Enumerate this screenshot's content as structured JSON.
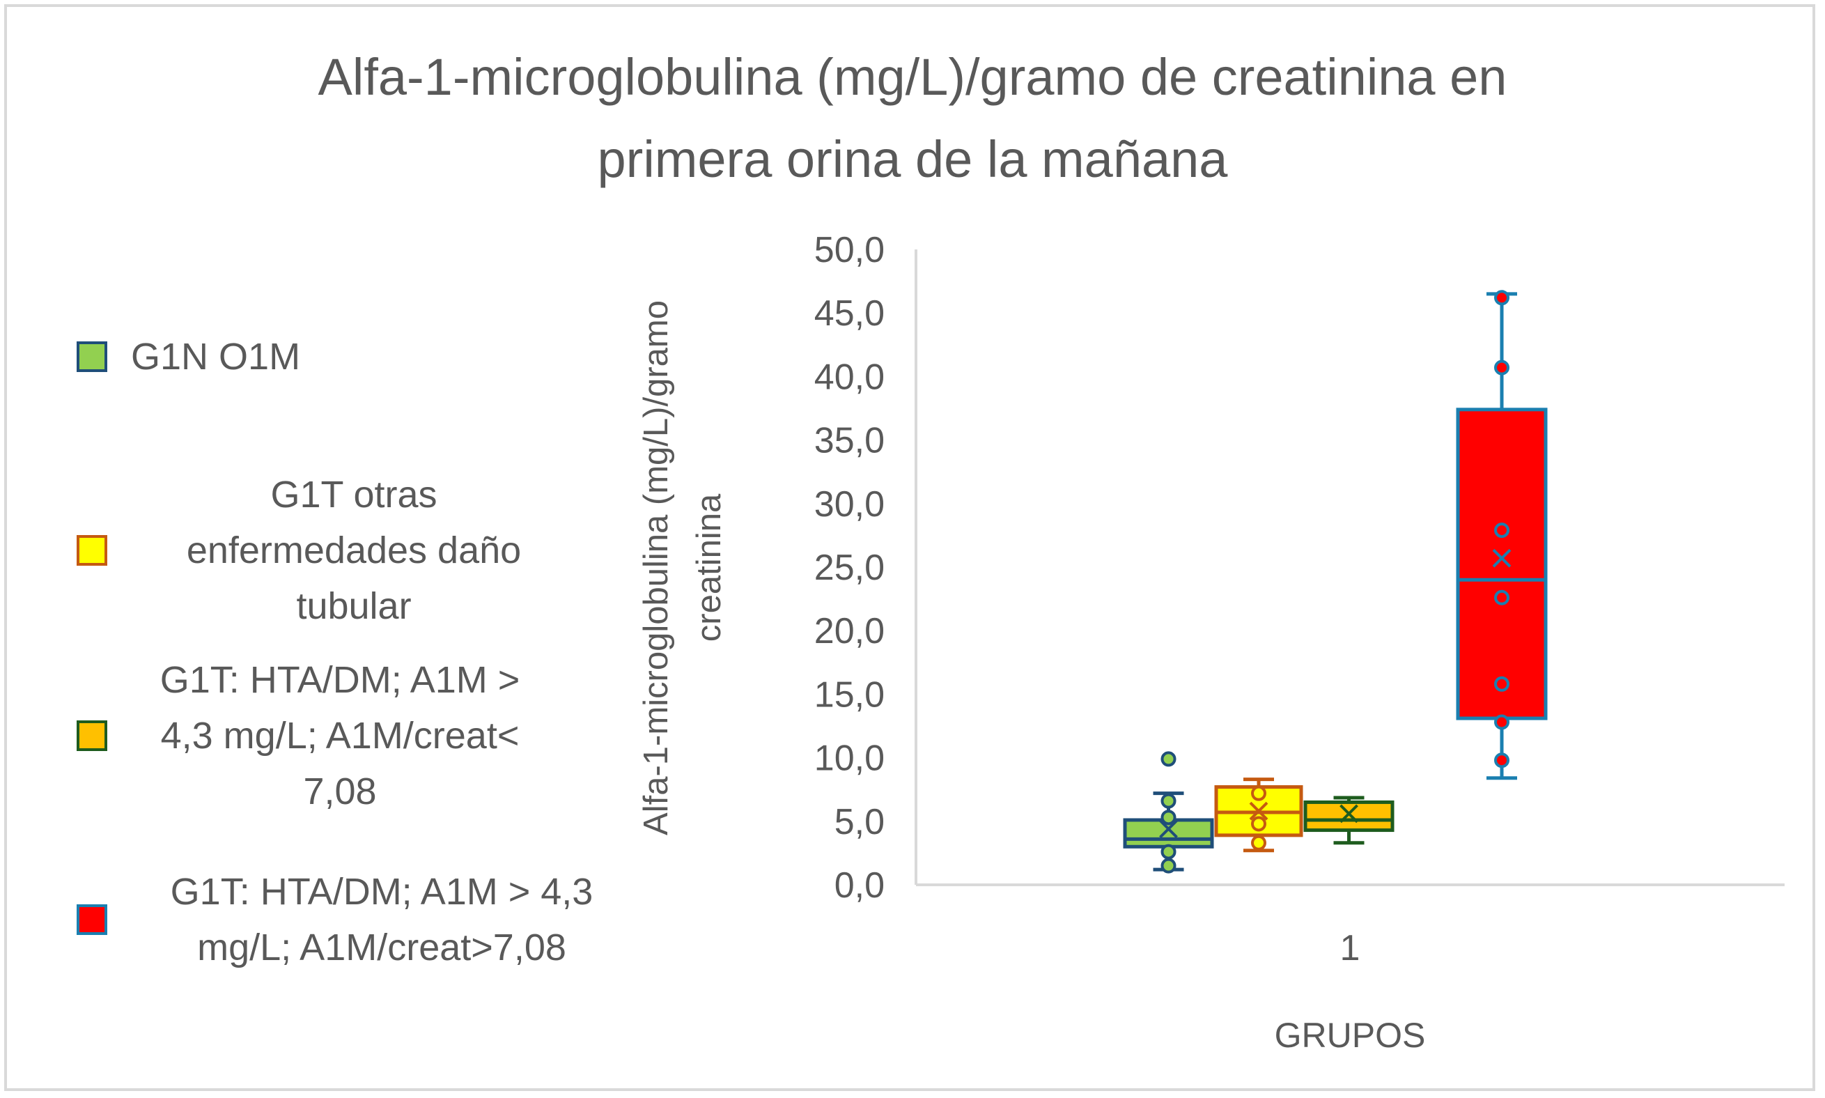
{
  "chart_data": {
    "type": "boxplot",
    "title": "Alfa-1-microglobulina (mg/L)/gramo de creatinina en primera orina de la mañana",
    "title_lines": [
      "Alfa-1-microglobulina (mg/L)/gramo de creatinina en",
      "primera orina de la mañana"
    ],
    "xlabel": "GRUPOS",
    "ylabel_lines": [
      "Alfa-1-microglobulina (mg/L)/gramo",
      "creatinina"
    ],
    "categories": [
      "1"
    ],
    "ylim": [
      0,
      50
    ],
    "yticks": [
      "0,0",
      "5,0",
      "10,0",
      "15,0",
      "20,0",
      "25,0",
      "30,0",
      "35,0",
      "40,0",
      "45,0",
      "50,0"
    ],
    "grid": false,
    "legend_position": "left",
    "series": [
      {
        "name": "G1N O1M",
        "fill": "#92d050",
        "stroke": "#1f4e79",
        "min": 1.2,
        "q1": 3.0,
        "median": 3.6,
        "q3": 5.1,
        "max": 7.2,
        "mean": 4.4,
        "points": [
          1.5,
          2.6,
          5.3,
          6.6,
          9.9
        ]
      },
      {
        "name": "G1T otras enfermedades daño tubular",
        "fill": "#ffff00",
        "stroke": "#c55a11",
        "min": 2.7,
        "q1": 3.9,
        "median": 5.7,
        "q3": 7.7,
        "max": 8.3,
        "mean": 5.8,
        "points": [
          3.3,
          4.8,
          7.2
        ]
      },
      {
        "name": "G1T: HTA/DM;  A1M > 4,3 mg/L; A1M/creat< 7,08",
        "fill": "#ffc000",
        "stroke": "#1e5c1e",
        "min": 3.3,
        "q1": 4.3,
        "median": 5.1,
        "q3": 6.5,
        "max": 6.85,
        "mean": 5.6,
        "points": []
      },
      {
        "name": "G1T: HTA/DM; A1M > 4,3 mg/L; A1M/creat>7,08",
        "fill": "#ff0000",
        "stroke": "#1a7fb0",
        "min": 8.4,
        "q1": 13.1,
        "median": 24.0,
        "q3": 37.4,
        "max": 46.5,
        "mean": 25.7,
        "points": [
          9.8,
          12.8,
          15.8,
          22.6,
          27.9,
          40.7,
          46.2
        ]
      }
    ]
  },
  "legend": [
    {
      "lines": [
        "G1N O1M"
      ]
    },
    {
      "lines": [
        "G1T otras",
        "enfermedades daño",
        "tubular"
      ]
    },
    {
      "lines": [
        "G1T: HTA/DM;  A1M >",
        "4,3 mg/L; A1M/creat<",
        "7,08"
      ]
    },
    {
      "lines": [
        "G1T: HTA/DM; A1M > 4,3",
        "mg/L; A1M/creat>7,08"
      ]
    }
  ]
}
